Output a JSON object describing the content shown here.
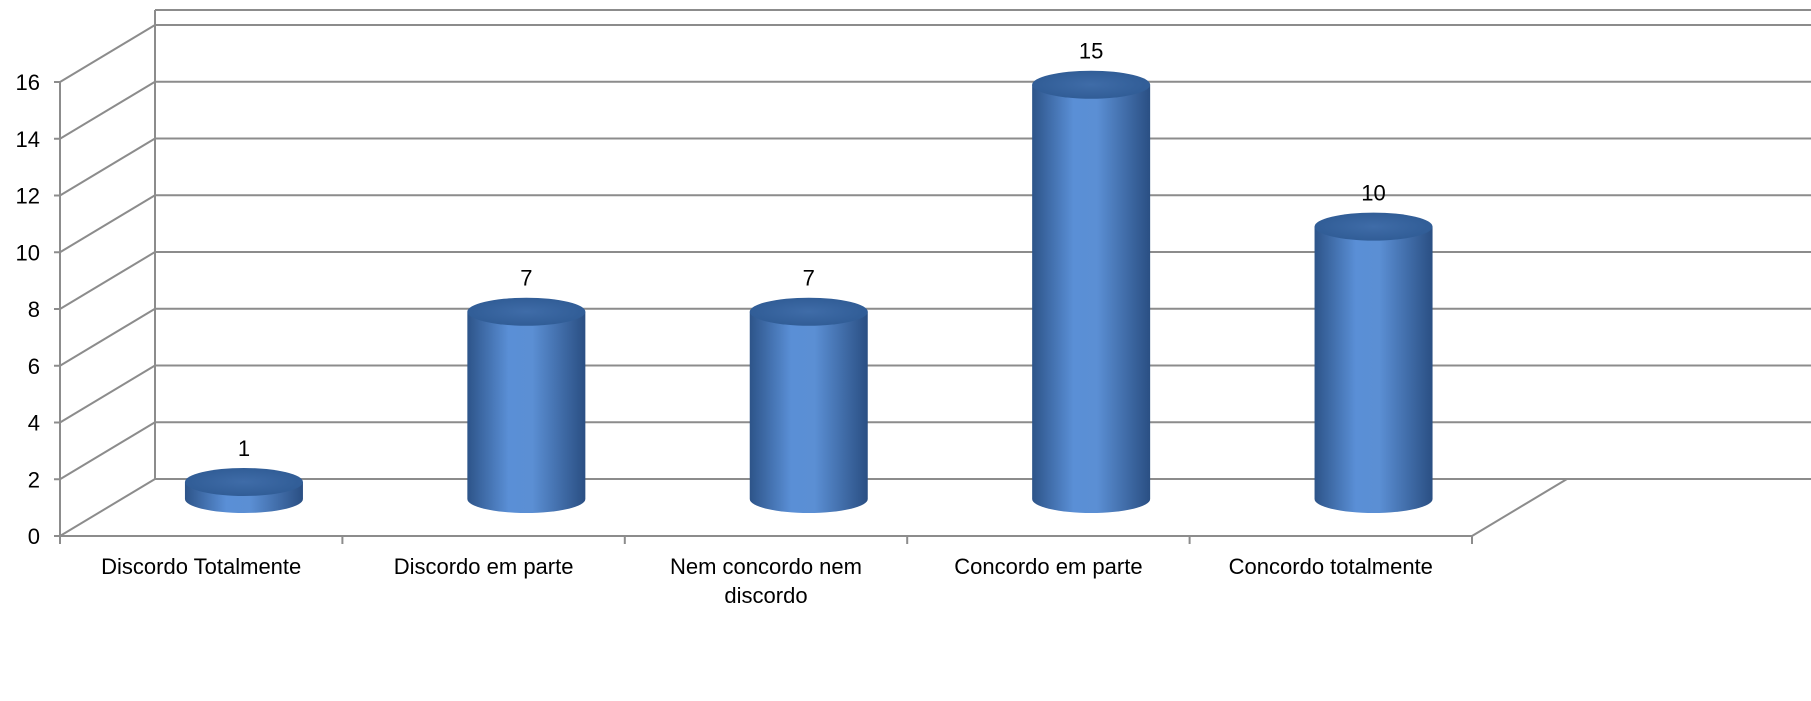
{
  "chart_data": {
    "type": "bar",
    "style": "3d-cylinder",
    "categories": [
      "Discordo Totalmente",
      "Discordo em parte",
      "Nem concordo nem discordo",
      "Concordo em parte",
      "Concordo totalmente"
    ],
    "values": [
      1,
      7,
      7,
      15,
      10
    ],
    "data_labels": [
      "1",
      "7",
      "7",
      "15",
      "10"
    ],
    "y_ticks": [
      "0",
      "2",
      "4",
      "6",
      "8",
      "10",
      "12",
      "14",
      "16"
    ],
    "ylim": [
      0,
      16
    ],
    "title": "",
    "xlabel": "",
    "ylabel": "",
    "grid": true,
    "legend": "none",
    "colors": {
      "bar": "#4F81BD",
      "bar_dark": "#2D5489",
      "bar_light": "#7FA6DC",
      "grid": "#8C8C8C",
      "axis": "#8C8C8C"
    }
  }
}
